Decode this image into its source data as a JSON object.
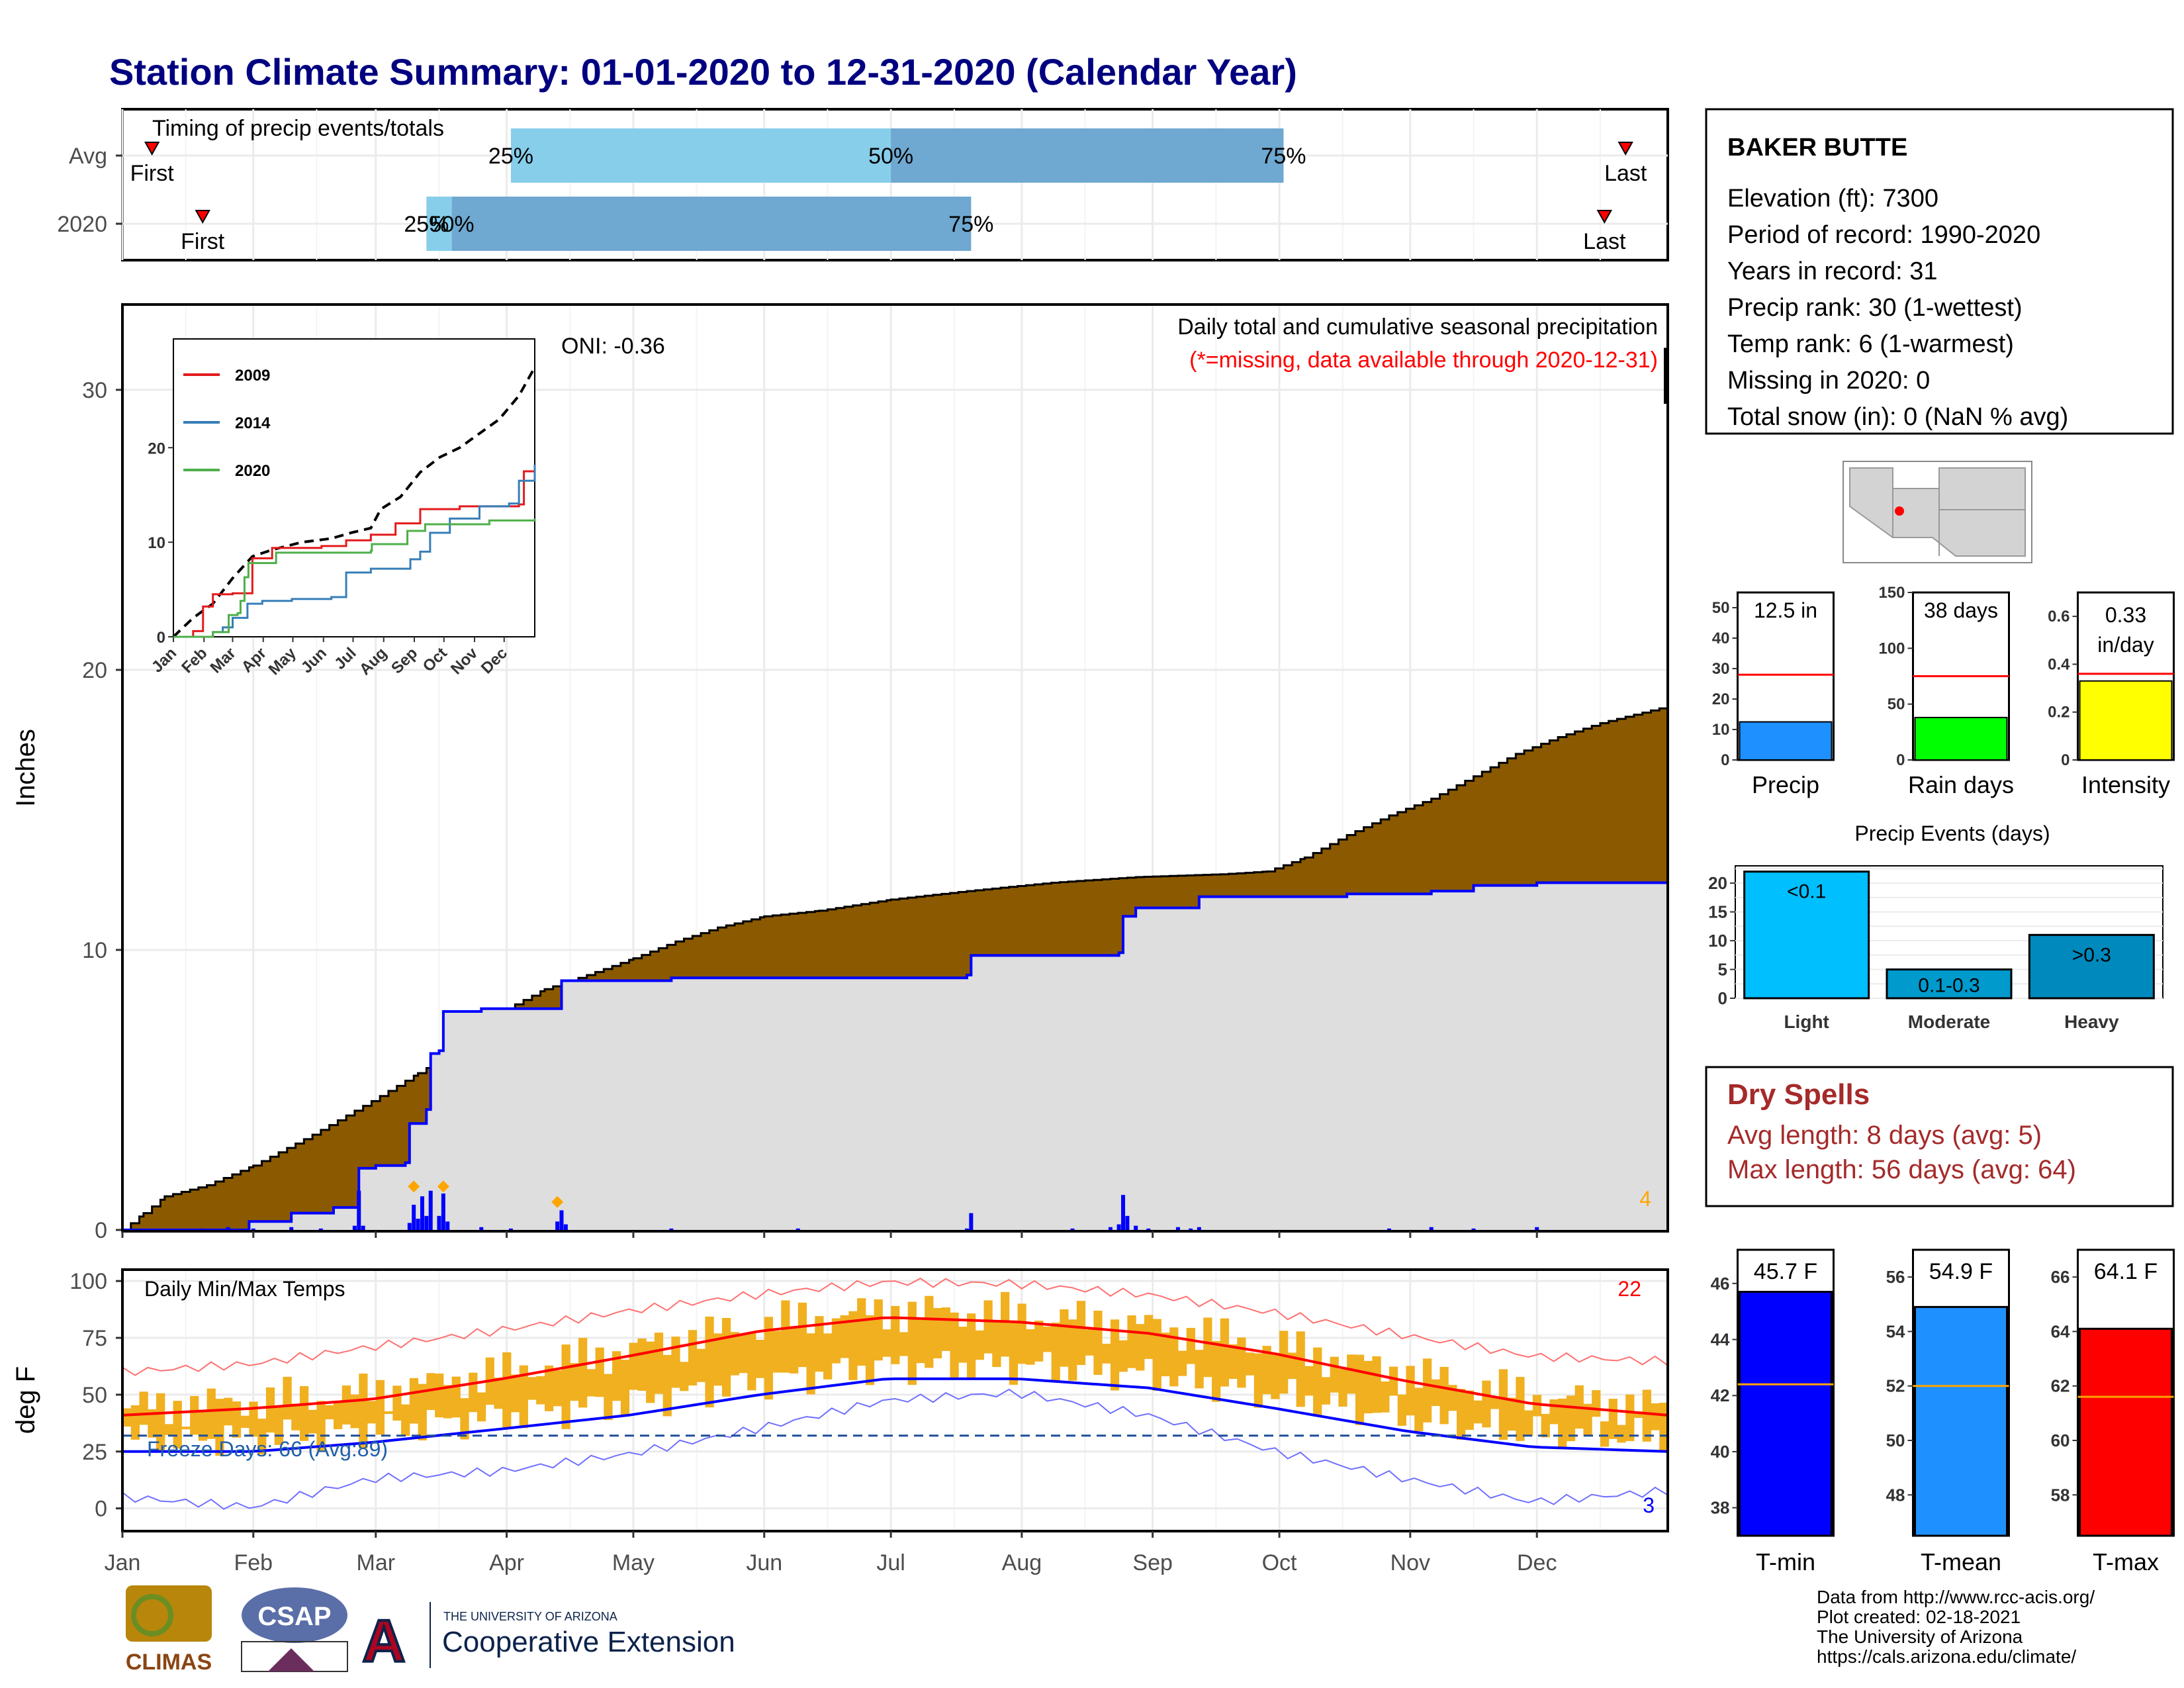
{
  "title": "Station Climate Summary: 01-01-2020 to 12-31-2020 (Calendar Year)",
  "colors": {
    "title": "#000080",
    "cumulative_fill": "#8B5A00",
    "precip_blue": "#0000FF",
    "freeze_orange": "#FFA500",
    "avg_light": "#87CEEB",
    "avg_dark": "#6FA8D0",
    "tmin": "#0000FF",
    "tmean": "#1E90FF",
    "tmax": "#FF0000",
    "dry": "#A52A2A",
    "temp_bar": "#F0B020"
  },
  "months": [
    "Jan",
    "Feb",
    "Mar",
    "Apr",
    "May",
    "Jun",
    "Jul",
    "Aug",
    "Sep",
    "Oct",
    "Nov",
    "Dec"
  ],
  "timing": {
    "label": "Timing of precip events/totals",
    "rows": [
      {
        "name": "Avg",
        "first_label": "First",
        "last_label": "Last",
        "first_doy": 7,
        "last_doy": 356,
        "p25_doy": 92,
        "p50_doy": 182,
        "p75_doy": 275,
        "p25_label": "25%",
        "p50_label": "50%",
        "p75_label": "75%"
      },
      {
        "name": "2020",
        "first_label": "First",
        "last_label": "Last",
        "first_doy": 19,
        "last_doy": 351,
        "p25_doy": 72,
        "p50_doy": 78,
        "p75_doy": 201,
        "p25_label": "25%",
        "p50_label": "50%",
        "p75_label": "75%"
      }
    ]
  },
  "precip_panel": {
    "ylabel": "Inches",
    "yticks": [
      0,
      10,
      20,
      30
    ],
    "ylim": [
      0,
      33
    ],
    "note1": "Daily total and cumulative seasonal precipitation",
    "note2": "(*=missing, data available through 2020-12-31)",
    "oni": "ONI: -0.36",
    "freeze_count": "4",
    "avg_cumulative": [
      [
        0,
        0
      ],
      [
        5,
        0.6
      ],
      [
        10,
        1.2
      ],
      [
        20,
        1.6
      ],
      [
        31,
        2.3
      ],
      [
        45,
        3.4
      ],
      [
        59,
        4.6
      ],
      [
        70,
        5.6
      ],
      [
        80,
        6.5
      ],
      [
        91,
        7.9
      ],
      [
        100,
        8.6
      ],
      [
        110,
        9.1
      ],
      [
        121,
        9.7
      ],
      [
        131,
        10.3
      ],
      [
        141,
        10.8
      ],
      [
        152,
        11.2
      ],
      [
        165,
        11.4
      ],
      [
        182,
        11.8
      ],
      [
        200,
        12.1
      ],
      [
        220,
        12.4
      ],
      [
        240,
        12.6
      ],
      [
        260,
        12.7
      ],
      [
        271,
        12.8
      ],
      [
        280,
        13.3
      ],
      [
        290,
        14.1
      ],
      [
        300,
        14.8
      ],
      [
        310,
        15.4
      ],
      [
        320,
        16.2
      ],
      [
        330,
        17.0
      ],
      [
        340,
        17.6
      ],
      [
        350,
        18.1
      ],
      [
        366,
        18.7
      ]
    ],
    "obs_cumulative": [
      [
        0,
        0
      ],
      [
        5,
        0
      ],
      [
        20,
        0
      ],
      [
        30,
        0.3
      ],
      [
        40,
        0.6
      ],
      [
        50,
        0.8
      ],
      [
        55,
        0.8
      ],
      [
        56,
        2.2
      ],
      [
        60,
        2.3
      ],
      [
        65,
        2.3
      ],
      [
        67,
        2.4
      ],
      [
        68,
        3.8
      ],
      [
        72,
        4.3
      ],
      [
        73,
        6.3
      ],
      [
        75,
        6.4
      ],
      [
        76,
        7.8
      ],
      [
        85,
        7.9
      ],
      [
        103,
        7.9
      ],
      [
        104,
        8.9
      ],
      [
        130,
        9.0
      ],
      [
        160,
        9.0
      ],
      [
        200,
        9.1
      ],
      [
        201,
        9.8
      ],
      [
        236,
        9.9
      ],
      [
        237,
        11.2
      ],
      [
        240,
        11.5
      ],
      [
        255,
        11.9
      ],
      [
        290,
        12.0
      ],
      [
        310,
        12.1
      ],
      [
        320,
        12.3
      ],
      [
        335,
        12.4
      ],
      [
        366,
        12.5
      ]
    ],
    "daily": [
      [
        19,
        0.05
      ],
      [
        25,
        0.1
      ],
      [
        31,
        0.05
      ],
      [
        40,
        0.1
      ],
      [
        47,
        0.05
      ],
      [
        55,
        0.15
      ],
      [
        56,
        1.4
      ],
      [
        57,
        0.15
      ],
      [
        68,
        0.25
      ],
      [
        69,
        0.9
      ],
      [
        70,
        0.4
      ],
      [
        71,
        1.2
      ],
      [
        72,
        0.5
      ],
      [
        73,
        1.4
      ],
      [
        75,
        0.5
      ],
      [
        76,
        1.3
      ],
      [
        77,
        0.3
      ],
      [
        85,
        0.1
      ],
      [
        92,
        0.05
      ],
      [
        103,
        0.3
      ],
      [
        104,
        0.7
      ],
      [
        105,
        0.2
      ],
      [
        130,
        0.05
      ],
      [
        160,
        0.05
      ],
      [
        200,
        0.05
      ],
      [
        201,
        0.6
      ],
      [
        225,
        0.05
      ],
      [
        234,
        0.1
      ],
      [
        236,
        0.2
      ],
      [
        237,
        1.25
      ],
      [
        238,
        0.5
      ],
      [
        240,
        0.15
      ],
      [
        243,
        0.05
      ],
      [
        250,
        0.1
      ],
      [
        253,
        0.05
      ],
      [
        255,
        0.1
      ],
      [
        300,
        0.05
      ],
      [
        310,
        0.1
      ],
      [
        320,
        0.05
      ],
      [
        335,
        0.1
      ]
    ],
    "freeze_markers": [
      [
        103,
        1.0
      ],
      [
        69,
        1.55
      ],
      [
        76,
        1.55
      ]
    ]
  },
  "inset": {
    "yticks": [
      0,
      10,
      20
    ],
    "series": [
      {
        "name": "2009",
        "color": "#E41A1C",
        "points": [
          [
            0,
            0
          ],
          [
            20,
            0.6
          ],
          [
            30,
            3.2
          ],
          [
            40,
            4.5
          ],
          [
            60,
            4.6
          ],
          [
            80,
            8.3
          ],
          [
            100,
            9.4
          ],
          [
            150,
            9.6
          ],
          [
            175,
            10.2
          ],
          [
            200,
            10.8
          ],
          [
            225,
            12.0
          ],
          [
            250,
            13.5
          ],
          [
            290,
            13.8
          ],
          [
            330,
            13.8
          ],
          [
            350,
            14.0
          ],
          [
            355,
            17.5
          ],
          [
            366,
            18.2
          ]
        ]
      },
      {
        "name": "2014",
        "color": "#377EB8",
        "points": [
          [
            0,
            0
          ],
          [
            40,
            0.5
          ],
          [
            50,
            1.0
          ],
          [
            60,
            2.0
          ],
          [
            75,
            3.5
          ],
          [
            90,
            3.8
          ],
          [
            120,
            4.0
          ],
          [
            160,
            4.2
          ],
          [
            175,
            6.8
          ],
          [
            200,
            7.2
          ],
          [
            240,
            8.2
          ],
          [
            250,
            9.0
          ],
          [
            260,
            11.0
          ],
          [
            280,
            12.5
          ],
          [
            310,
            13.8
          ],
          [
            340,
            14.1
          ],
          [
            350,
            16.5
          ],
          [
            366,
            18.2
          ]
        ]
      },
      {
        "name": "2020",
        "color": "#4DAF4A",
        "points": [
          [
            0,
            0
          ],
          [
            40,
            0.5
          ],
          [
            56,
            2.3
          ],
          [
            65,
            2.5
          ],
          [
            68,
            3.8
          ],
          [
            72,
            6.3
          ],
          [
            76,
            7.8
          ],
          [
            104,
            8.9
          ],
          [
            200,
            9.1
          ],
          [
            201,
            9.8
          ],
          [
            237,
            11.2
          ],
          [
            255,
            11.9
          ],
          [
            320,
            12.3
          ],
          [
            366,
            12.5
          ]
        ]
      }
    ],
    "avg_dashed": [
      [
        0,
        0
      ],
      [
        20,
        2.0
      ],
      [
        40,
        3.5
      ],
      [
        60,
        6.2
      ],
      [
        80,
        8.5
      ],
      [
        100,
        9.2
      ],
      [
        130,
        10.0
      ],
      [
        160,
        10.4
      ],
      [
        180,
        11.0
      ],
      [
        200,
        11.5
      ],
      [
        210,
        13.5
      ],
      [
        230,
        14.8
      ],
      [
        250,
        17.4
      ],
      [
        270,
        19.0
      ],
      [
        290,
        20.0
      ],
      [
        310,
        21.5
      ],
      [
        330,
        23.0
      ],
      [
        350,
        25.5
      ],
      [
        366,
        28.5
      ]
    ]
  },
  "temp_panel": {
    "ylabel": "deg F",
    "label": "Daily Min/Max Temps",
    "yticks": [
      0,
      25,
      50,
      75,
      100
    ],
    "ylim": [
      -10,
      105
    ],
    "freeze_line": 32,
    "freeze_label": "Freeze Days: 66 (Avg:89)",
    "count_hot": "22",
    "count_cold": "3",
    "avg_max": [
      [
        0,
        41
      ],
      [
        31,
        44
      ],
      [
        59,
        48
      ],
      [
        90,
        57
      ],
      [
        120,
        67
      ],
      [
        151,
        78
      ],
      [
        181,
        84
      ],
      [
        212,
        82
      ],
      [
        243,
        77
      ],
      [
        273,
        68
      ],
      [
        304,
        56
      ],
      [
        334,
        46
      ],
      [
        366,
        41
      ]
    ],
    "avg_min": [
      [
        0,
        25
      ],
      [
        31,
        25
      ],
      [
        59,
        29
      ],
      [
        90,
        35
      ],
      [
        120,
        41
      ],
      [
        151,
        50
      ],
      [
        181,
        57
      ],
      [
        212,
        57
      ],
      [
        243,
        53
      ],
      [
        273,
        44
      ],
      [
        304,
        34
      ],
      [
        334,
        27
      ],
      [
        366,
        25
      ]
    ],
    "record_max": [
      [
        0,
        60
      ],
      [
        31,
        63
      ],
      [
        59,
        70
      ],
      [
        90,
        77
      ],
      [
        120,
        85
      ],
      [
        151,
        92
      ],
      [
        181,
        97
      ],
      [
        212,
        96
      ],
      [
        243,
        91
      ],
      [
        273,
        83
      ],
      [
        304,
        73
      ],
      [
        334,
        64
      ],
      [
        366,
        62
      ]
    ],
    "record_min": [
      [
        0,
        5
      ],
      [
        31,
        0
      ],
      [
        59,
        12
      ],
      [
        90,
        15
      ],
      [
        120,
        22
      ],
      [
        151,
        33
      ],
      [
        181,
        45
      ],
      [
        212,
        48
      ],
      [
        243,
        38
      ],
      [
        273,
        22
      ],
      [
        304,
        10
      ],
      [
        334,
        0
      ],
      [
        366,
        5
      ]
    ]
  },
  "station": {
    "name": "BAKER BUTTE",
    "lines": [
      "Elevation (ft): 7300",
      "Period of record: 1990-2020",
      "Years in record: 31",
      "Precip rank: 30 (1-wettest)",
      "Temp rank: 6 (1-warmest)",
      "Missing in 2020: 0",
      "Total snow (in): 0 (NaN % avg)"
    ]
  },
  "mini_bars": [
    {
      "label": "Precip",
      "value_text": "12.5 in",
      "value": 12.5,
      "avg": 28,
      "ymax": 55,
      "yticks": [
        0,
        10,
        20,
        30,
        40,
        50
      ],
      "color": "#1E90FF"
    },
    {
      "label": "Rain days",
      "value_text": "38 days",
      "value": 38,
      "avg": 75,
      "ymax": 150,
      "yticks": [
        0,
        50,
        100,
        150
      ],
      "color": "#00FF00"
    },
    {
      "label": "Intensity",
      "value_text": "0.33 in/day",
      "value": 0.33,
      "avg": 0.36,
      "ymax": 0.7,
      "yticks": [
        0.0,
        0.2,
        0.4,
        0.6
      ],
      "color": "#FFFF00"
    }
  ],
  "precip_events": {
    "title": "Precip Events (days)",
    "yticks": [
      0,
      5,
      10,
      15,
      20
    ],
    "ymax": 23,
    "bars": [
      {
        "name": "Light",
        "label": "<0.1",
        "value": 22,
        "color": "#00BFFF"
      },
      {
        "name": "Moderate",
        "label": "0.1-0.3",
        "value": 5,
        "color": "#009ACD"
      },
      {
        "name": "Heavy",
        "label": ">0.3",
        "value": 11,
        "color": "#0089BD"
      }
    ]
  },
  "dry_spells": {
    "title": "Dry Spells",
    "avg_line": "Avg length: 8 days (avg: 5)",
    "max_line": "Max length: 56 days (avg: 64)"
  },
  "temp_bars": [
    {
      "label": "T-min",
      "value_text": "45.7 F",
      "value": 45.7,
      "avg": 42.4,
      "ymin": 37,
      "ymax": 47.2,
      "yticks": [
        38,
        40,
        42,
        44,
        46
      ],
      "color": "#0000FF"
    },
    {
      "label": "T-mean",
      "value_text": "54.9 F",
      "value": 54.9,
      "avg": 52,
      "ymin": 46.5,
      "ymax": 57,
      "yticks": [
        48,
        50,
        52,
        54,
        56
      ],
      "color": "#1E90FF"
    },
    {
      "label": "T-max",
      "value_text": "64.1 F",
      "value": 64.1,
      "avg": 61.6,
      "ymin": 56.5,
      "ymax": 67,
      "yticks": [
        58,
        60,
        62,
        64,
        66
      ],
      "color": "#FF0000"
    }
  ],
  "footer": {
    "lines": [
      "Data from http://www.rcc-acis.org/",
      "Plot created: 02-18-2021",
      "The University of Arizona",
      "https://cals.arizona.edu/climate/"
    ],
    "logo_climas": "CLIMAS",
    "logo_csap": "CSAP",
    "ua_small": "THE UNIVERSITY OF ARIZONA",
    "ua_big": "Cooperative Extension"
  }
}
